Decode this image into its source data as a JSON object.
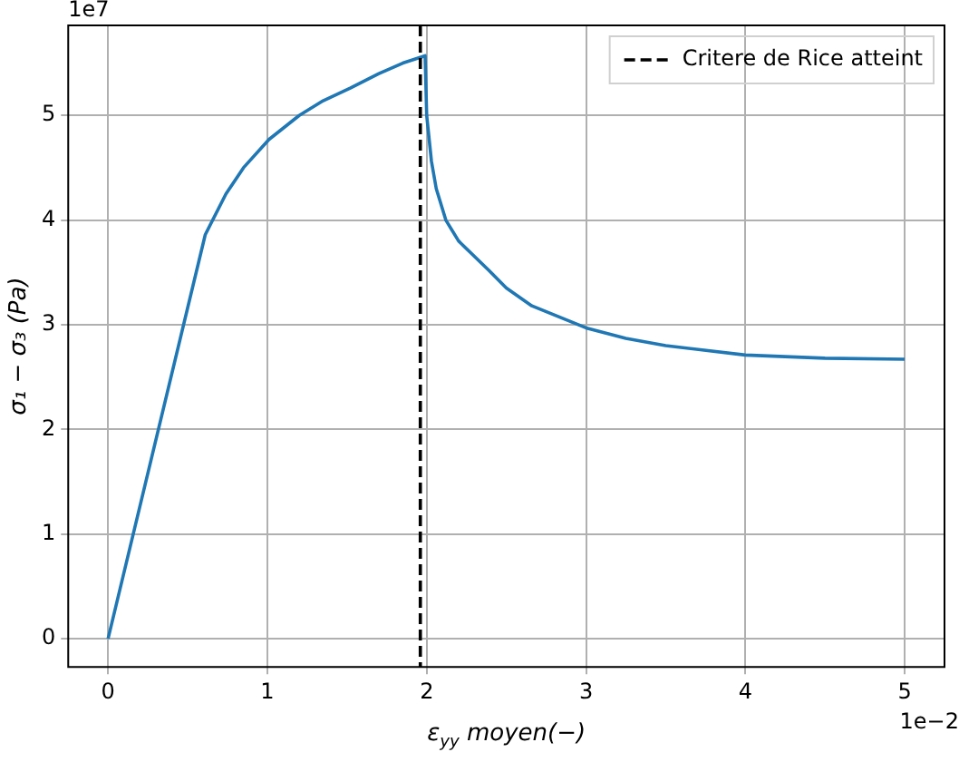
{
  "chart_data": {
    "type": "line",
    "xlabel": "ε$_{yy}$ moyen(−)",
    "ylabel": "σ₁ − σ₃ (Pa)",
    "annotations": [
      "1e7",
      "1e−2"
    ],
    "series": [
      {
        "color": "#1f77b4",
        "x": [
          0,
          0.61,
          0.74,
          0.85,
          1.01,
          1.2,
          1.35,
          1.52,
          1.7,
          1.85,
          1.99,
          2.0,
          2.03,
          2.06,
          2.12,
          2.2,
          2.39,
          2.5,
          2.66,
          3.0,
          3.25,
          3.5,
          4.0,
          4.5,
          5.0
        ],
        "values": [
          0,
          3.86,
          4.25,
          4.5,
          4.77,
          5.0,
          5.14,
          5.26,
          5.4,
          5.5,
          5.57,
          5.0,
          4.56,
          4.3,
          4.0,
          3.8,
          3.52,
          3.35,
          3.18,
          2.97,
          2.87,
          2.8,
          2.71,
          2.68,
          2.67
        ]
      }
    ],
    "ref_lines": [
      {
        "axis": "x",
        "value": 1.96,
        "label": "Critere de Rice atteint",
        "color": "#000000",
        "line_style": "dashed"
      }
    ],
    "xlim": [
      -0.25,
      5.25
    ],
    "xticks": [
      0,
      1,
      2,
      3,
      4,
      5
    ],
    "ylim": [
      -0.27,
      5.86
    ],
    "yticks": [
      0,
      1,
      2,
      3,
      4,
      5
    ],
    "grid": true,
    "legend": "top right",
    "marker": "none",
    "line_style": "solid"
  }
}
